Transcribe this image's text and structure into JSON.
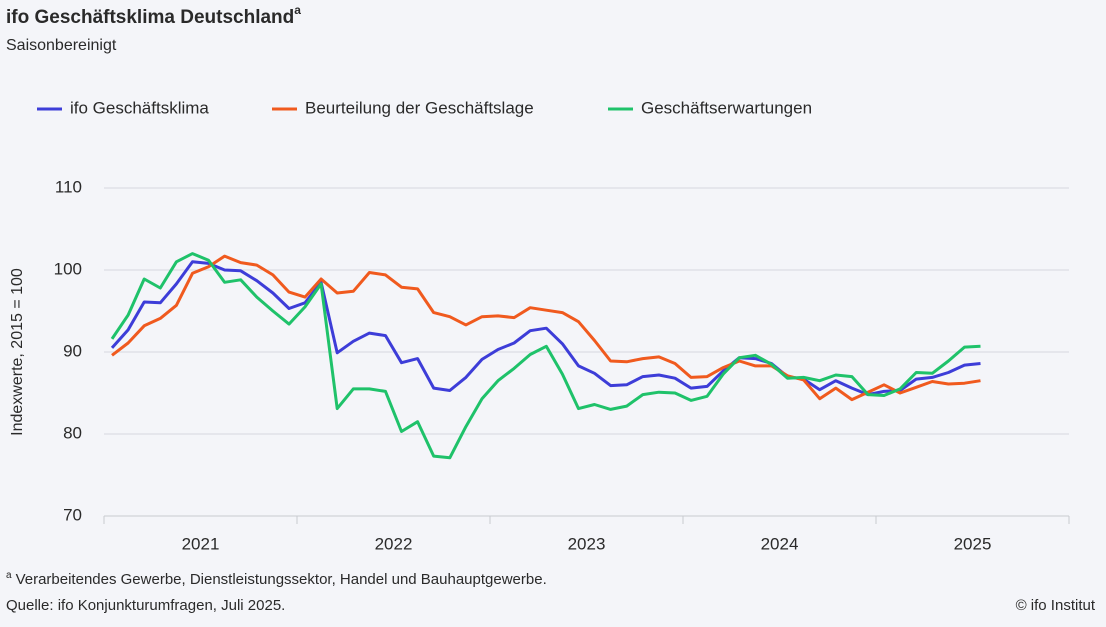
{
  "chart_data": {
    "type": "line",
    "title": "ifo Geschäftsklima Deutschland",
    "title_marker": "a",
    "subtitle": "Saisonbereinigt",
    "y_label": "Indexwerte, 2015 = 100",
    "footnote_marker": "a",
    "footnote": "Verarbeitendes Gewerbe, Dienstleistungssektor, Handel und Bauhauptgewerbe.",
    "source": "Quelle: ifo Konjunkturumfragen, Juli 2025.",
    "copyright": "© ifo Institut",
    "grid": true,
    "legend": "top-left",
    "xlim": [
      2021,
      2026
    ],
    "xticks": [
      {
        "value": 2021.5,
        "label": "2021"
      },
      {
        "value": 2022.5,
        "label": "2022"
      },
      {
        "value": 2023.5,
        "label": "2023"
      },
      {
        "value": 2024.5,
        "label": "2024"
      },
      {
        "value": 2025.5,
        "label": "2025"
      }
    ],
    "xminor": [
      2021,
      2022,
      2023,
      2024,
      2025,
      2026
    ],
    "ylim": [
      70,
      110
    ],
    "yticks": [
      70,
      80,
      90,
      100,
      110
    ],
    "x": [
      2021.0417,
      2021.125,
      2021.2083,
      2021.2917,
      2021.375,
      2021.4583,
      2021.5417,
      2021.625,
      2021.7083,
      2021.7917,
      2021.875,
      2021.9583,
      2022.0417,
      2022.125,
      2022.2083,
      2022.2917,
      2022.375,
      2022.4583,
      2022.5417,
      2022.625,
      2022.7083,
      2022.7917,
      2022.875,
      2022.9583,
      2023.0417,
      2023.125,
      2023.2083,
      2023.2917,
      2023.375,
      2023.4583,
      2023.5417,
      2023.625,
      2023.7083,
      2023.7917,
      2023.875,
      2023.9583,
      2024.0417,
      2024.125,
      2024.2083,
      2024.2917,
      2024.375,
      2024.4583,
      2024.5417,
      2024.625,
      2024.7083,
      2024.7917,
      2024.875,
      2024.9583,
      2025.0417,
      2025.125,
      2025.2083,
      2025.2917,
      2025.375,
      2025.4583,
      2025.5417
    ],
    "series": [
      {
        "name": "ifo Geschäftsklima",
        "color": "#3d3dd8",
        "values": [
          90.5,
          92.7,
          96.1,
          96.0,
          98.3,
          101.0,
          100.8,
          100.0,
          99.9,
          98.7,
          97.2,
          95.3,
          96.0,
          98.5,
          89.9,
          91.3,
          92.3,
          92.0,
          88.7,
          89.2,
          85.6,
          85.3,
          86.9,
          89.1,
          90.3,
          91.1,
          92.6,
          92.9,
          91.0,
          88.3,
          87.4,
          85.9,
          86.0,
          87.0,
          87.2,
          86.8,
          85.6,
          85.8,
          87.7,
          89.3,
          89.2,
          88.6,
          87.0,
          86.7,
          85.4,
          86.5,
          85.6,
          84.8,
          85.2,
          85.3,
          86.7,
          86.9,
          87.5,
          88.4,
          88.6
        ]
      },
      {
        "name": "Beurteilung der Geschäftslage",
        "color": "#f05a1e",
        "values": [
          89.6,
          91.1,
          93.2,
          94.1,
          95.7,
          99.6,
          100.4,
          101.7,
          100.9,
          100.6,
          99.4,
          97.3,
          96.7,
          98.9,
          97.2,
          97.4,
          99.7,
          99.4,
          97.9,
          97.7,
          94.8,
          94.3,
          93.3,
          94.3,
          94.4,
          94.2,
          95.4,
          95.1,
          94.8,
          93.7,
          91.4,
          88.9,
          88.8,
          89.2,
          89.4,
          88.6,
          86.9,
          87.0,
          88.1,
          88.9,
          88.3,
          88.3,
          87.1,
          86.6,
          84.3,
          85.6,
          84.2,
          85.1,
          86.0,
          85.0,
          85.7,
          86.4,
          86.1,
          86.2,
          86.5
        ]
      },
      {
        "name": "Geschäftserwartungen",
        "color": "#1fc26a",
        "values": [
          91.6,
          94.5,
          98.9,
          97.8,
          101.0,
          102.0,
          101.2,
          98.5,
          98.8,
          96.7,
          95.0,
          93.4,
          95.5,
          98.3,
          83.1,
          85.5,
          85.5,
          85.2,
          80.3,
          81.5,
          77.3,
          77.1,
          80.9,
          84.3,
          86.5,
          88.0,
          89.7,
          90.7,
          87.3,
          83.1,
          83.6,
          83.0,
          83.4,
          84.8,
          85.1,
          85.0,
          84.1,
          84.6,
          87.3,
          89.3,
          89.6,
          88.5,
          86.8,
          86.9,
          86.5,
          87.2,
          87.0,
          84.8,
          84.7,
          85.5,
          87.5,
          87.4,
          88.9,
          90.6,
          90.7
        ]
      }
    ]
  }
}
